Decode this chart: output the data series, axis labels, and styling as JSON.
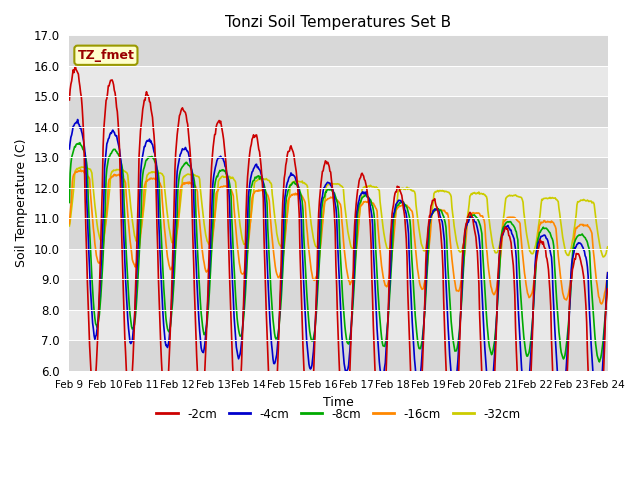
{
  "title": "Tonzi Soil Temperatures Set B",
  "xlabel": "Time",
  "ylabel": "Soil Temperature (C)",
  "ylim": [
    6.0,
    17.0
  ],
  "yticks": [
    6.0,
    7.0,
    8.0,
    9.0,
    10.0,
    11.0,
    12.0,
    13.0,
    14.0,
    15.0,
    16.0,
    17.0
  ],
  "legend_label": "TZ_fmet",
  "series_labels": [
    "-2cm",
    "-4cm",
    "-8cm",
    "-16cm",
    "-32cm"
  ],
  "series_colors": [
    "#cc0000",
    "#0000cc",
    "#00aa00",
    "#ff8800",
    "#cccc00"
  ],
  "line_width": 1.2,
  "n_days": 15,
  "start_day": 9,
  "figsize": [
    6.4,
    4.8
  ],
  "dpi": 100
}
